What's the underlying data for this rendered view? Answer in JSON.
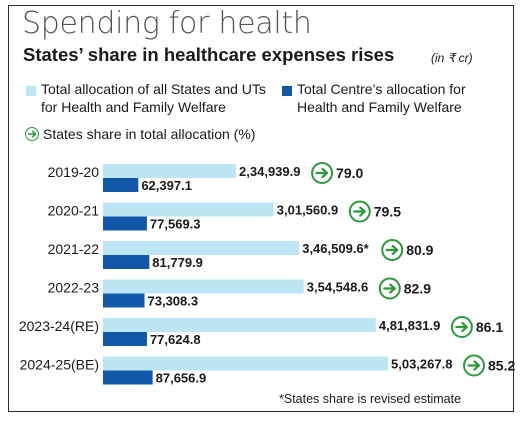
{
  "title": "Spending for health",
  "subtitle": "States’ share in healthcare expenses rises",
  "unit": "(in ₹ cr)",
  "legend": {
    "states": "Total allocation of all States and UTs for Health and Family Welfare",
    "states_line1": "Total allocation of all States and UTs",
    "states_line2": "for Health and Family Welfare",
    "centre": "Total Centre’s allocation for Health and Family Welfare",
    "centre_line1": "Total Centre’s allocation for",
    "centre_line2": "Health and Family Welfare",
    "share": "States share in total allocation (%)"
  },
  "colors": {
    "states": "#bde6f5",
    "centre": "#1358a8",
    "share_icon": "#2c9a3a"
  },
  "footnote": "*States share is revised estimate",
  "chart_data": {
    "type": "bar",
    "orientation": "horizontal",
    "categories": [
      "2019-20",
      "2020-21",
      "2021-22",
      "2022-23",
      "2023-24(RE)",
      "2024-25(BE)"
    ],
    "series": [
      {
        "name": "Total allocation of all States and UTs for Health and Family Welfare",
        "values": [
          234939.9,
          301560.9,
          346509.6,
          354548.6,
          481831.9,
          503267.8
        ],
        "labels": [
          "2,34,939.9",
          "3,01,560.9",
          "3,46,509.6*",
          "3,54,548.6",
          "4,81,831.9",
          "5,03,267.8"
        ]
      },
      {
        "name": "Total Centre’s allocation for Health and Family Welfare",
        "values": [
          62397.1,
          77569.3,
          81779.9,
          73308.3,
          77624.8,
          87656.9
        ],
        "labels": [
          "62,397.1",
          "77,569.3",
          "81,779.9",
          "73,308.3",
          "77,624.8",
          "87,656.9"
        ]
      }
    ],
    "share": {
      "name": "States share in total allocation (%)",
      "values": [
        79.0,
        79.5,
        80.9,
        82.9,
        86.1,
        85.2
      ],
      "labels": [
        "79.0",
        "79.5",
        "80.9",
        "82.9",
        "86.1",
        "85.2"
      ]
    }
  }
}
